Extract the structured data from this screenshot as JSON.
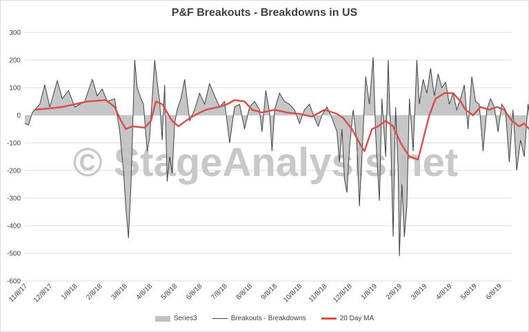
{
  "chart_data": {
    "type": "area",
    "title": "P&F Breakouts - Breakdowns in US",
    "watermark": "© StageAnalysis.net",
    "xlabel": "",
    "ylabel": "",
    "ylim": [
      -600,
      300
    ],
    "y_ticks": [
      300,
      200,
      100,
      0,
      -100,
      -200,
      -300,
      -400,
      -500,
      -600
    ],
    "x_ticks": [
      "11/8/17",
      "12/8/17",
      "1/8/18",
      "2/8/18",
      "3/8/18",
      "4/8/18",
      "5/8/18",
      "6/8/18",
      "7/8/18",
      "8/8/18",
      "9/8/18",
      "10/8/18",
      "11/8/18",
      "12/8/18",
      "1/8/19",
      "2/8/19",
      "3/8/19",
      "4/8/19",
      "5/8/19",
      "6/8/19"
    ],
    "grid": true,
    "legend_position": "bottom",
    "colors": {
      "area": "#c0c0c0",
      "line": "#404040",
      "ma": "#d6504c",
      "grid": "#d9d9d9"
    },
    "legend": [
      {
        "name": "Series3",
        "style": "area"
      },
      {
        "name": "Breakouts - Breakdowns",
        "style": "line"
      },
      {
        "name": "20 Day MA",
        "style": "ma"
      }
    ],
    "keypoints": [
      [
        0,
        -30
      ],
      [
        0.3,
        -35
      ],
      [
        0.6,
        10
      ],
      [
        1.2,
        40
      ],
      [
        1.6,
        110
      ],
      [
        2.0,
        30
      ],
      [
        2.6,
        125
      ],
      [
        3.0,
        60
      ],
      [
        3.5,
        90
      ],
      [
        4.0,
        30
      ],
      [
        4.8,
        50
      ],
      [
        5.4,
        130
      ],
      [
        5.8,
        70
      ],
      [
        6.2,
        95
      ],
      [
        6.6,
        50
      ],
      [
        7.2,
        60
      ],
      [
        7.6,
        -60
      ],
      [
        7.9,
        -200
      ],
      [
        8.1,
        -340
      ],
      [
        8.3,
        -445
      ],
      [
        8.5,
        -250
      ],
      [
        8.8,
        200
      ],
      [
        9.0,
        100
      ],
      [
        9.3,
        60
      ],
      [
        9.5,
        40
      ],
      [
        9.8,
        -130
      ],
      [
        10.0,
        -80
      ],
      [
        10.2,
        60
      ],
      [
        10.4,
        200
      ],
      [
        10.6,
        120
      ],
      [
        10.8,
        50
      ],
      [
        11.0,
        -90
      ],
      [
        11.2,
        110
      ],
      [
        11.4,
        -240
      ],
      [
        11.6,
        -150
      ],
      [
        11.8,
        -210
      ],
      [
        12.0,
        -30
      ],
      [
        12.2,
        20
      ],
      [
        12.5,
        60
      ],
      [
        12.8,
        130
      ],
      [
        13.2,
        -20
      ],
      [
        13.6,
        20
      ],
      [
        14.0,
        80
      ],
      [
        14.4,
        40
      ],
      [
        14.8,
        115
      ],
      [
        15.2,
        70
      ],
      [
        15.6,
        30
      ],
      [
        16.0,
        50
      ],
      [
        16.4,
        -100
      ],
      [
        16.8,
        30
      ],
      [
        17.2,
        40
      ],
      [
        17.6,
        -50
      ],
      [
        18.0,
        30
      ],
      [
        18.4,
        50
      ],
      [
        18.8,
        20
      ],
      [
        19.0,
        -60
      ],
      [
        19.3,
        90
      ],
      [
        19.6,
        10
      ],
      [
        19.8,
        -130
      ],
      [
        20.0,
        20
      ],
      [
        20.4,
        80
      ],
      [
        20.8,
        50
      ],
      [
        21.2,
        40
      ],
      [
        21.6,
        20
      ],
      [
        22.0,
        -30
      ],
      [
        22.4,
        20
      ],
      [
        22.8,
        40
      ],
      [
        23.2,
        -10
      ],
      [
        23.5,
        -40
      ],
      [
        23.8,
        0
      ],
      [
        24.2,
        30
      ],
      [
        24.6,
        -10
      ],
      [
        25.0,
        -60
      ],
      [
        25.2,
        -170
      ],
      [
        25.4,
        -50
      ],
      [
        25.6,
        -230
      ],
      [
        25.8,
        -280
      ],
      [
        26.0,
        -120
      ],
      [
        26.3,
        20
      ],
      [
        26.6,
        -100
      ],
      [
        26.8,
        -330
      ],
      [
        27.0,
        -150
      ],
      [
        27.3,
        140
      ],
      [
        27.6,
        40
      ],
      [
        27.9,
        210
      ],
      [
        28.1,
        -70
      ],
      [
        28.4,
        -310
      ],
      [
        28.6,
        60
      ],
      [
        28.9,
        -150
      ],
      [
        29.1,
        200
      ],
      [
        29.3,
        -70
      ],
      [
        29.5,
        -440
      ],
      [
        29.7,
        30
      ],
      [
        29.9,
        -200
      ],
      [
        30.0,
        -510
      ],
      [
        30.2,
        -250
      ],
      [
        30.4,
        -440
      ],
      [
        30.6,
        -330
      ],
      [
        30.8,
        60
      ],
      [
        31.1,
        -130
      ],
      [
        31.4,
        200
      ],
      [
        31.6,
        40
      ],
      [
        31.9,
        130
      ],
      [
        32.2,
        80
      ],
      [
        32.5,
        170
      ],
      [
        32.8,
        70
      ],
      [
        33.1,
        150
      ],
      [
        33.4,
        100
      ],
      [
        33.7,
        120
      ],
      [
        34.0,
        40
      ],
      [
        34.3,
        80
      ],
      [
        34.6,
        20
      ],
      [
        34.9,
        60
      ],
      [
        35.2,
        110
      ],
      [
        35.5,
        -50
      ],
      [
        35.8,
        140
      ],
      [
        36.1,
        50
      ],
      [
        36.4,
        40
      ],
      [
        36.7,
        -130
      ],
      [
        37.0,
        20
      ],
      [
        37.3,
        60
      ],
      [
        37.6,
        30
      ],
      [
        37.9,
        -60
      ],
      [
        38.2,
        40
      ],
      [
        38.5,
        20
      ],
      [
        38.8,
        -170
      ],
      [
        39.1,
        20
      ],
      [
        39.4,
        -200
      ],
      [
        39.7,
        -90
      ],
      [
        40.0,
        -150
      ],
      [
        40.3,
        40
      ],
      [
        40.6,
        -40
      ],
      [
        40.9,
        100
      ],
      [
        41.1,
        110
      ],
      [
        41.3,
        -20
      ],
      [
        41.5,
        20
      ]
    ],
    "ma_keypoints": [
      [
        0.8,
        20
      ],
      [
        2.0,
        25
      ],
      [
        3.0,
        30
      ],
      [
        5.0,
        50
      ],
      [
        6.5,
        55
      ],
      [
        7.2,
        30
      ],
      [
        7.7,
        -20
      ],
      [
        8.1,
        -50
      ],
      [
        8.6,
        -40
      ],
      [
        9.6,
        -45
      ],
      [
        10.1,
        -20
      ],
      [
        10.5,
        50
      ],
      [
        11.0,
        40
      ],
      [
        11.4,
        10
      ],
      [
        11.8,
        -20
      ],
      [
        12.3,
        -40
      ],
      [
        12.9,
        -20
      ],
      [
        13.6,
        0
      ],
      [
        14.5,
        20
      ],
      [
        15.5,
        30
      ],
      [
        16.2,
        40
      ],
      [
        16.8,
        55
      ],
      [
        17.6,
        50
      ],
      [
        18.2,
        20
      ],
      [
        19.0,
        10
      ],
      [
        20.0,
        20
      ],
      [
        21.0,
        10
      ],
      [
        22.0,
        5
      ],
      [
        23.0,
        -5
      ],
      [
        24.0,
        20
      ],
      [
        25.0,
        5
      ],
      [
        25.5,
        -10
      ],
      [
        26.2,
        -50
      ],
      [
        26.8,
        -100
      ],
      [
        27.2,
        -130
      ],
      [
        27.8,
        -50
      ],
      [
        28.3,
        -40
      ],
      [
        28.9,
        -20
      ],
      [
        29.5,
        -40
      ],
      [
        30.1,
        -100
      ],
      [
        30.8,
        -150
      ],
      [
        31.5,
        -160
      ],
      [
        32.0,
        -70
      ],
      [
        32.4,
        0
      ],
      [
        32.9,
        60
      ],
      [
        33.6,
        80
      ],
      [
        34.3,
        80
      ],
      [
        34.9,
        50
      ],
      [
        35.3,
        20
      ],
      [
        35.9,
        0
      ],
      [
        36.5,
        30
      ],
      [
        37.2,
        20
      ],
      [
        37.8,
        30
      ],
      [
        38.4,
        20
      ],
      [
        39.0,
        -20
      ],
      [
        39.6,
        -40
      ],
      [
        40.0,
        -30
      ],
      [
        40.5,
        -55
      ],
      [
        40.9,
        -30
      ],
      [
        41.3,
        -20
      ],
      [
        41.5,
        -25
      ]
    ]
  }
}
